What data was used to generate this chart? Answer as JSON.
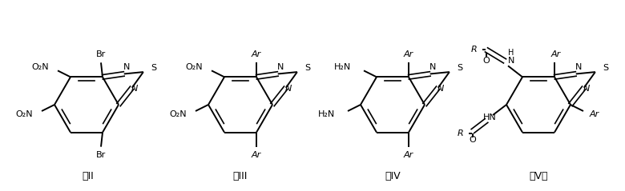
{
  "background_color": "#ffffff",
  "labels": [
    "式II",
    "式III",
    "式IV",
    "式V。"
  ],
  "fig_width": 7.8,
  "fig_height": 2.39,
  "dpi": 100
}
